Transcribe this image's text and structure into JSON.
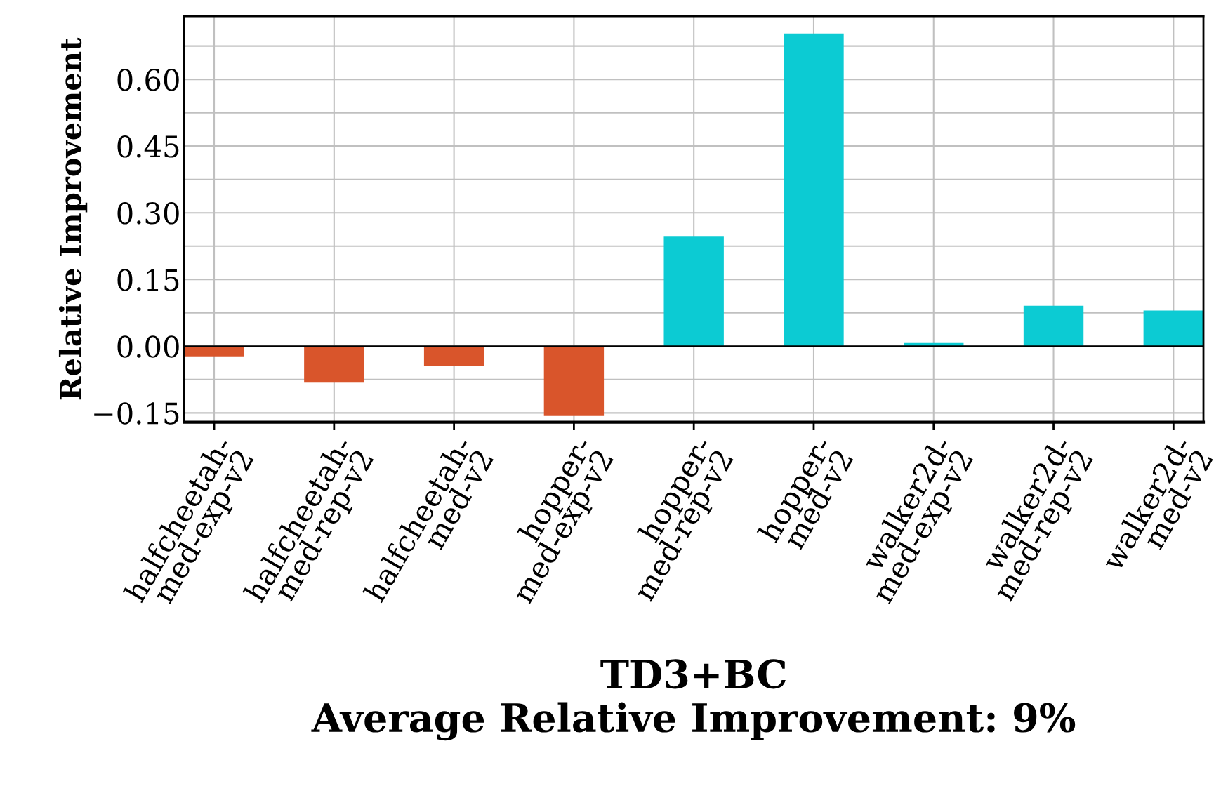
{
  "chart_data": {
    "type": "bar",
    "xlabel": "TD3+BC\nAverage Relative Improvement: 9%",
    "ylabel": "Relative Improvement",
    "categories": [
      "halfcheetah-\nmed-exp-v2",
      "halfcheetah-\nmed-rep-v2",
      "halfcheetah-\nmed-v2",
      "hopper-\nmed-exp-v2",
      "hopper-\nmed-rep-v2",
      "hopper-\nmed-v2",
      "walker2d-\nmed-exp-v2",
      "walker2d-\nmed-rep-v2",
      "walker2d-\nmed-v2"
    ],
    "values": [
      -0.023,
      -0.082,
      -0.045,
      -0.157,
      0.248,
      0.703,
      0.007,
      0.091,
      0.08
    ],
    "colors": [
      "#d9552b",
      "#d9552b",
      "#d9552b",
      "#d9552b",
      "#0ccbd3",
      "#0ccbd3",
      "#0ccbd3",
      "#0ccbd3",
      "#0ccbd3"
    ],
    "ylim": [
      -0.171,
      0.742
    ],
    "yticks": [
      {
        "value": -0.15,
        "label": "−0.15"
      },
      {
        "value": 0,
        "label": "0.00"
      },
      {
        "value": 0.15,
        "label": "0.15"
      },
      {
        "value": 0.3,
        "label": "0.30"
      },
      {
        "value": 0.45,
        "label": "0.45"
      },
      {
        "value": 0.6,
        "label": "0.60"
      }
    ],
    "ref_lines": [
      {
        "axis": "y",
        "value": 0,
        "color": "#000000"
      }
    ],
    "grid": true
  }
}
